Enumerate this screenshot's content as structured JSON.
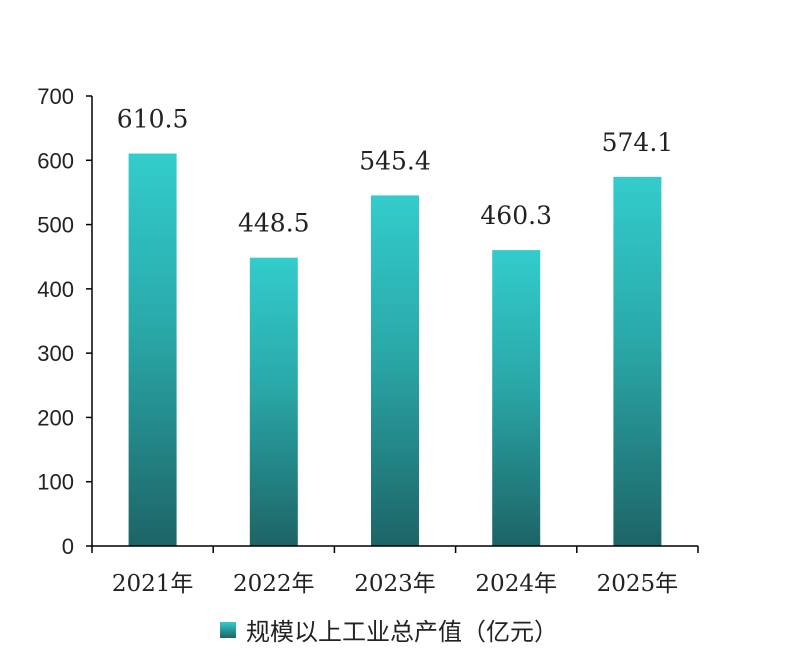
{
  "chart_data": {
    "type": "bar",
    "categories": [
      "2021年",
      "2022年",
      "2023年",
      "2024年",
      "2025年"
    ],
    "series": [
      {
        "name": "规模以上工业总产值（亿元）",
        "values": [
          610.5,
          448.5,
          545.4,
          460.3,
          574.1
        ]
      }
    ],
    "value_labels": [
      "610.5",
      "448.5",
      "545.4",
      "460.3",
      "574.1"
    ],
    "ylim": [
      0,
      700
    ],
    "yticks": [
      0,
      100,
      200,
      300,
      400,
      500,
      600,
      700
    ],
    "xlabel": "",
    "ylabel": "",
    "grid": false,
    "legend_position": "bottom",
    "colors": {
      "bar_top": "#33cccc",
      "bar_bottom": "#1d6466",
      "axis": "#000000"
    }
  }
}
